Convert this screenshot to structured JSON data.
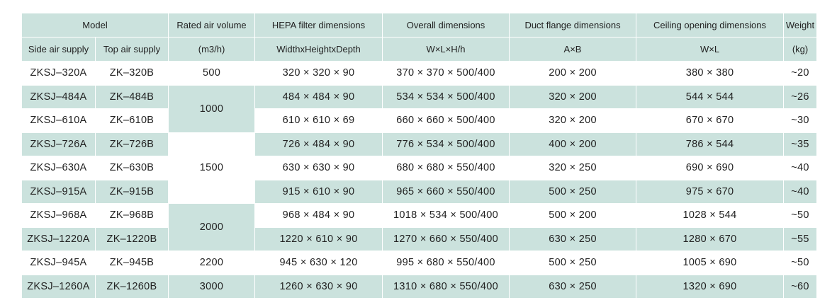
{
  "header": {
    "model": "Model",
    "side_air_supply": "Side air supply",
    "top_air_supply": "Top air supply",
    "rated_air_volume": "Rated air volume",
    "rated_air_volume_unit": "(m3/h)",
    "hepa_filter": "HEPA filter dimensions",
    "hepa_filter_unit": "WidthxHeightxDepth",
    "overall": "Overall dimensions",
    "overall_unit": "W×L×H/h",
    "duct_flange": "Duct flange dimensions",
    "duct_flange_unit": "A×B",
    "ceiling_opening": "Ceiling opening dimensions",
    "ceiling_opening_unit": "W×L",
    "weight": "Weight",
    "weight_unit": "(kg)"
  },
  "airflow_groups": [
    "500",
    "1000",
    "1500",
    "2000",
    "2200",
    "3000"
  ],
  "rows": [
    {
      "side": "ZKSJ–320A",
      "top": "ZK–320B",
      "hepa": "320 × 320 × 90",
      "overall": "370 × 370 × 500/400",
      "flange": "200 × 200",
      "ceiling": "380 × 380",
      "weight": "~20"
    },
    {
      "side": "ZKSJ–484A",
      "top": "ZK–484B",
      "hepa": "484 × 484 × 90",
      "overall": "534 × 534 × 500/400",
      "flange": "320 × 200",
      "ceiling": "544 × 544",
      "weight": "~26"
    },
    {
      "side": "ZKSJ–610A",
      "top": "ZK–610B",
      "hepa": "610 × 610 × 69",
      "overall": "660 × 660 × 500/400",
      "flange": "320 × 200",
      "ceiling": "670 × 670",
      "weight": "~30"
    },
    {
      "side": "ZKSJ–726A",
      "top": "ZK–726B",
      "hepa": "726 × 484 × 90",
      "overall": "776 × 534 × 500/400",
      "flange": "400 × 200",
      "ceiling": "786 × 544",
      "weight": "~35"
    },
    {
      "side": "ZKSJ–630A",
      "top": "ZK–630B",
      "hepa": "630 × 630 × 90",
      "overall": "680 × 680 × 550/400",
      "flange": "320 × 250",
      "ceiling": "690 × 690",
      "weight": "~40"
    },
    {
      "side": "ZKSJ–915A",
      "top": "ZK–915B",
      "hepa": "915 × 610 × 90",
      "overall": "965 × 660 × 550/400",
      "flange": "500 × 250",
      "ceiling": "975 × 670",
      "weight": "~40"
    },
    {
      "side": "ZKSJ–968A",
      "top": "ZK–968B",
      "hepa": "968 × 484 × 90",
      "overall": "1018 × 534 × 500/400",
      "flange": "500 × 200",
      "ceiling": "1028 × 544",
      "weight": "~50"
    },
    {
      "side": "ZKSJ–1220A",
      "top": "ZK–1220B",
      "hepa": "1220 × 610 × 90",
      "overall": "1270 × 660 × 550/400",
      "flange": "630 × 250",
      "ceiling": "1280 × 670",
      "weight": "~55"
    },
    {
      "side": "ZKSJ–945A",
      "top": "ZK–945B",
      "hepa": "945 × 630 × 120",
      "overall": "995 × 680 × 550/400",
      "flange": "500 × 250",
      "ceiling": "1005 × 690",
      "weight": "~50"
    },
    {
      "side": "ZKSJ–1260A",
      "top": "ZK–1260B",
      "hepa": "1260 × 630 × 90",
      "overall": "1310 × 680 × 550/400",
      "flange": "630 × 250",
      "ceiling": "1320 × 690",
      "weight": "~60"
    }
  ],
  "colors": {
    "header_bg": "#cbe2dd",
    "stripe_bg": "#cbe2dd",
    "text": "#222222"
  }
}
